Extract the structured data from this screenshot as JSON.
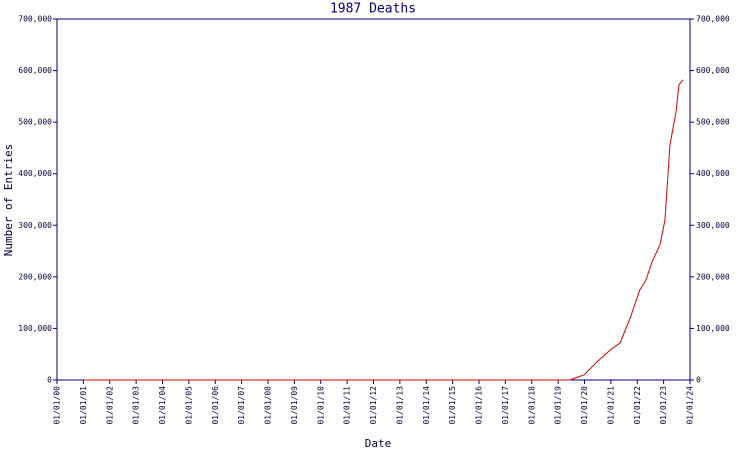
{
  "chart_data": {
    "type": "line",
    "title": "1987 Deaths",
    "x_label": "Date",
    "y_label": "Number of Entries",
    "x": [
      2001.0,
      2019.45,
      2019.75,
      2019.98,
      2020.47,
      2020.97,
      2021.35,
      2021.73,
      2022.1,
      2022.33,
      2022.56,
      2022.86,
      2023.05,
      2023.24,
      2023.47,
      2023.58,
      2023.73
    ],
    "series": [
      {
        "color": "#e00000",
        "values": [
          0,
          0,
          5800,
          9700,
          35000,
          58000,
          72000,
          120000,
          175000,
          194000,
          229000,
          262000,
          310000,
          456000,
          520000,
          572000,
          582000
        ]
      }
    ],
    "xlim": [
      2000,
      2024
    ],
    "xticks": [
      {
        "value": 2000,
        "label": "01/01/00"
      },
      {
        "value": 2001,
        "label": "01/01/01"
      },
      {
        "value": 2002,
        "label": "01/01/02"
      },
      {
        "value": 2003,
        "label": "01/01/03"
      },
      {
        "value": 2004,
        "label": "01/01/04"
      },
      {
        "value": 2005,
        "label": "01/01/05"
      },
      {
        "value": 2006,
        "label": "01/01/06"
      },
      {
        "value": 2007,
        "label": "01/01/07"
      },
      {
        "value": 2008,
        "label": "01/01/08"
      },
      {
        "value": 2009,
        "label": "01/01/09"
      },
      {
        "value": 2010,
        "label": "01/01/10"
      },
      {
        "value": 2011,
        "label": "01/01/11"
      },
      {
        "value": 2012,
        "label": "01/01/12"
      },
      {
        "value": 2013,
        "label": "01/01/13"
      },
      {
        "value": 2014,
        "label": "01/01/14"
      },
      {
        "value": 2015,
        "label": "01/01/15"
      },
      {
        "value": 2016,
        "label": "01/01/16"
      },
      {
        "value": 2017,
        "label": "01/01/17"
      },
      {
        "value": 2018,
        "label": "01/01/18"
      },
      {
        "value": 2019,
        "label": "01/01/19"
      },
      {
        "value": 2020,
        "label": "01/01/20"
      },
      {
        "value": 2021,
        "label": "01/01/21"
      },
      {
        "value": 2022,
        "label": "01/01/22"
      },
      {
        "value": 2023,
        "label": "01/01/23"
      },
      {
        "value": 2024,
        "label": "01/01/24"
      }
    ],
    "ylim": [
      0,
      700000
    ],
    "yticks": [
      0,
      {
        "value": 100000,
        "label": "100,000"
      },
      {
        "value": 200000,
        "label": "200,000"
      },
      {
        "value": 300000,
        "label": "300,000"
      },
      {
        "value": 400000,
        "label": "400,000"
      },
      {
        "value": 500000,
        "label": "500,000"
      },
      {
        "value": 600000,
        "label": "600,000"
      },
      {
        "value": 700000,
        "label": "700,000"
      }
    ]
  }
}
